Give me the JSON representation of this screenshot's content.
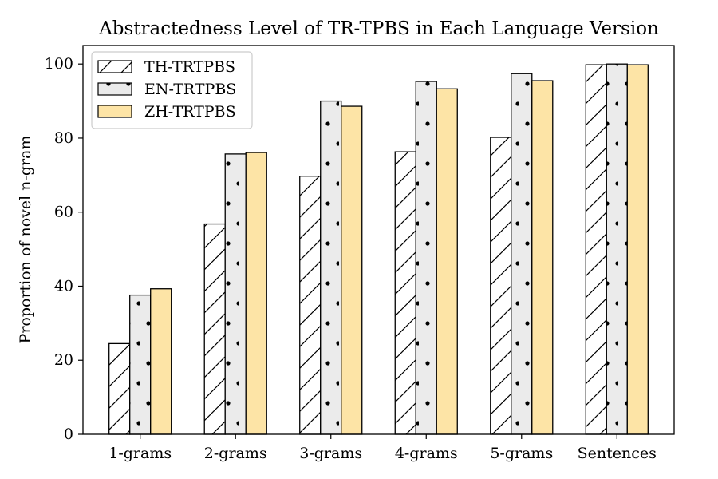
{
  "chart_data": {
    "type": "bar",
    "title": "Abstractedness Level of TR-TPBS in Each Language Version",
    "xlabel": "",
    "ylabel": "Proportion of novel n-gram",
    "categories": [
      "1-grams",
      "2-grams",
      "3-grams",
      "4-grams",
      "5-grams",
      "Sentences"
    ],
    "ylim": [
      0,
      105
    ],
    "yticks": [
      0,
      20,
      40,
      60,
      80,
      100
    ],
    "grid": false,
    "legend_position": "top-left",
    "series": [
      {
        "name": "TH-TRTPBS",
        "values": [
          24.5,
          56.8,
          69.7,
          76.3,
          80.2,
          99.8
        ],
        "color": "#ffffff",
        "pattern": "hatch"
      },
      {
        "name": "EN-TRTPBS",
        "values": [
          37.6,
          75.7,
          90.0,
          95.3,
          97.4,
          100.0
        ],
        "color": "#ebebeb",
        "pattern": "dots"
      },
      {
        "name": "ZH-TRTPBS",
        "values": [
          39.3,
          76.1,
          88.6,
          93.3,
          95.5,
          99.8
        ],
        "color": "#fde4a6",
        "pattern": "none"
      }
    ]
  }
}
